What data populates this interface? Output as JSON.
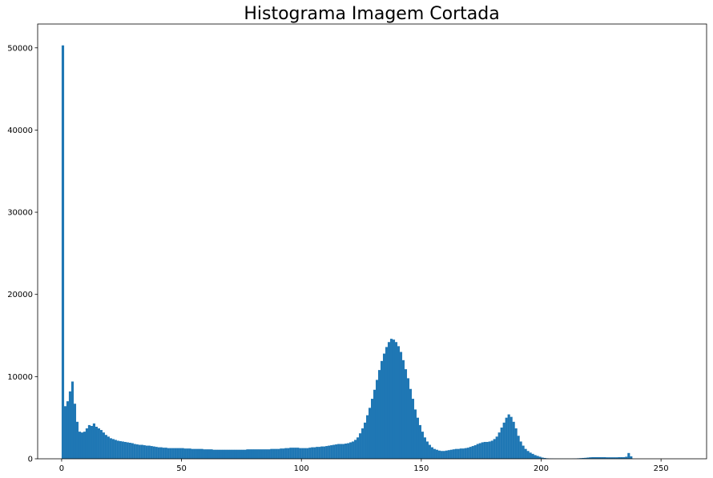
{
  "chart_data": {
    "type": "bar",
    "title": "Histograma Imagem Cortada",
    "xlabel": "",
    "ylabel": "",
    "xlim": [
      -10,
      269
    ],
    "ylim": [
      0,
      52900
    ],
    "xticks": [
      0,
      50,
      100,
      150,
      200,
      250
    ],
    "yticks": [
      0,
      10000,
      20000,
      30000,
      40000,
      50000
    ],
    "grid": false,
    "bin_width": 1,
    "bar_color": "#1f77b4",
    "series": [
      {
        "values": [
          50300,
          6400,
          7000,
          8200,
          9400,
          6700,
          4500,
          3300,
          3200,
          3300,
          3700,
          4100,
          4000,
          4300,
          3900,
          3700,
          3500,
          3200,
          2900,
          2700,
          2500,
          2400,
          2300,
          2200,
          2150,
          2100,
          2050,
          2000,
          1950,
          1900,
          1800,
          1750,
          1700,
          1700,
          1650,
          1600,
          1600,
          1550,
          1500,
          1450,
          1400,
          1400,
          1350,
          1350,
          1300,
          1300,
          1300,
          1300,
          1300,
          1300,
          1300,
          1250,
          1250,
          1250,
          1200,
          1200,
          1200,
          1200,
          1200,
          1150,
          1150,
          1150,
          1150,
          1100,
          1100,
          1100,
          1100,
          1100,
          1100,
          1100,
          1100,
          1100,
          1100,
          1100,
          1100,
          1100,
          1100,
          1150,
          1150,
          1150,
          1150,
          1150,
          1150,
          1150,
          1150,
          1150,
          1150,
          1200,
          1200,
          1200,
          1200,
          1250,
          1250,
          1300,
          1300,
          1350,
          1350,
          1350,
          1350,
          1300,
          1300,
          1300,
          1300,
          1350,
          1400,
          1400,
          1450,
          1450,
          1500,
          1500,
          1550,
          1600,
          1650,
          1700,
          1750,
          1800,
          1800,
          1800,
          1850,
          1900,
          2000,
          2100,
          2300,
          2600,
          3100,
          3700,
          4400,
          5300,
          6200,
          7300,
          8400,
          9600,
          10800,
          11900,
          12800,
          13600,
          14200,
          14600,
          14500,
          14200,
          13700,
          13000,
          12000,
          10900,
          9800,
          8500,
          7300,
          6000,
          5000,
          4100,
          3300,
          2600,
          2100,
          1700,
          1400,
          1200,
          1100,
          1000,
          950,
          950,
          1000,
          1050,
          1100,
          1150,
          1200,
          1200,
          1250,
          1250,
          1300,
          1350,
          1450,
          1550,
          1650,
          1800,
          1900,
          2000,
          2050,
          2050,
          2100,
          2200,
          2400,
          2700,
          3200,
          3800,
          4400,
          5000,
          5400,
          5100,
          4500,
          3700,
          2800,
          2100,
          1600,
          1200,
          950,
          750,
          600,
          450,
          350,
          250,
          150,
          100,
          60,
          40,
          30,
          20,
          20,
          20,
          20,
          20,
          20,
          20,
          20,
          30,
          40,
          60,
          80,
          100,
          120,
          150,
          180,
          200,
          200,
          200,
          200,
          200,
          200,
          180,
          180,
          180,
          180,
          180,
          200,
          200,
          200,
          250,
          700,
          300,
          0
        ]
      }
    ]
  }
}
